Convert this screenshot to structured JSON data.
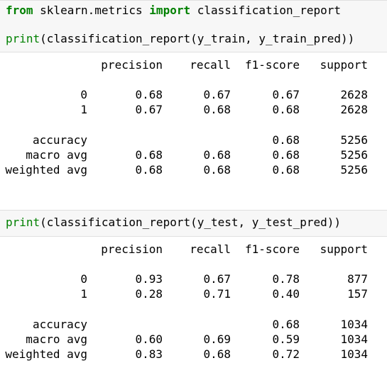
{
  "cell1": {
    "line1": {
      "kw_from": "from",
      "mod": " sklearn.metrics ",
      "kw_import": "import",
      "name": " classification_report"
    },
    "line2": {
      "fn": "print",
      "args": "(classification_report(y_train, y_train_pred))"
    }
  },
  "report_train": {
    "header": {
      "precision": "precision",
      "recall": "recall",
      "f1": "f1-score",
      "support": "support"
    },
    "rows": [
      {
        "label": "0",
        "precision": "0.68",
        "recall": "0.67",
        "f1": "0.67",
        "support": "2628"
      },
      {
        "label": "1",
        "precision": "0.67",
        "recall": "0.68",
        "f1": "0.68",
        "support": "2628"
      }
    ],
    "accuracy": {
      "label": "accuracy",
      "f1": "0.68",
      "support": "5256"
    },
    "macro": {
      "label": "macro avg",
      "precision": "0.68",
      "recall": "0.68",
      "f1": "0.68",
      "support": "5256"
    },
    "weighted": {
      "label": "weighted avg",
      "precision": "0.68",
      "recall": "0.68",
      "f1": "0.68",
      "support": "5256"
    }
  },
  "cell2": {
    "line1": {
      "fn": "print",
      "args": "(classification_report(y_test, y_test_pred))"
    }
  },
  "report_test": {
    "header": {
      "precision": "precision",
      "recall": "recall",
      "f1": "f1-score",
      "support": "support"
    },
    "rows": [
      {
        "label": "0",
        "precision": "0.93",
        "recall": "0.67",
        "f1": "0.78",
        "support": "877"
      },
      {
        "label": "1",
        "precision": "0.28",
        "recall": "0.71",
        "f1": "0.40",
        "support": "157"
      }
    ],
    "accuracy": {
      "label": "accuracy",
      "f1": "0.68",
      "support": "1034"
    },
    "macro": {
      "label": "macro avg",
      "precision": "0.60",
      "recall": "0.69",
      "f1": "0.59",
      "support": "1034"
    },
    "weighted": {
      "label": "weighted avg",
      "precision": "0.83",
      "recall": "0.68",
      "f1": "0.72",
      "support": "1034"
    }
  }
}
